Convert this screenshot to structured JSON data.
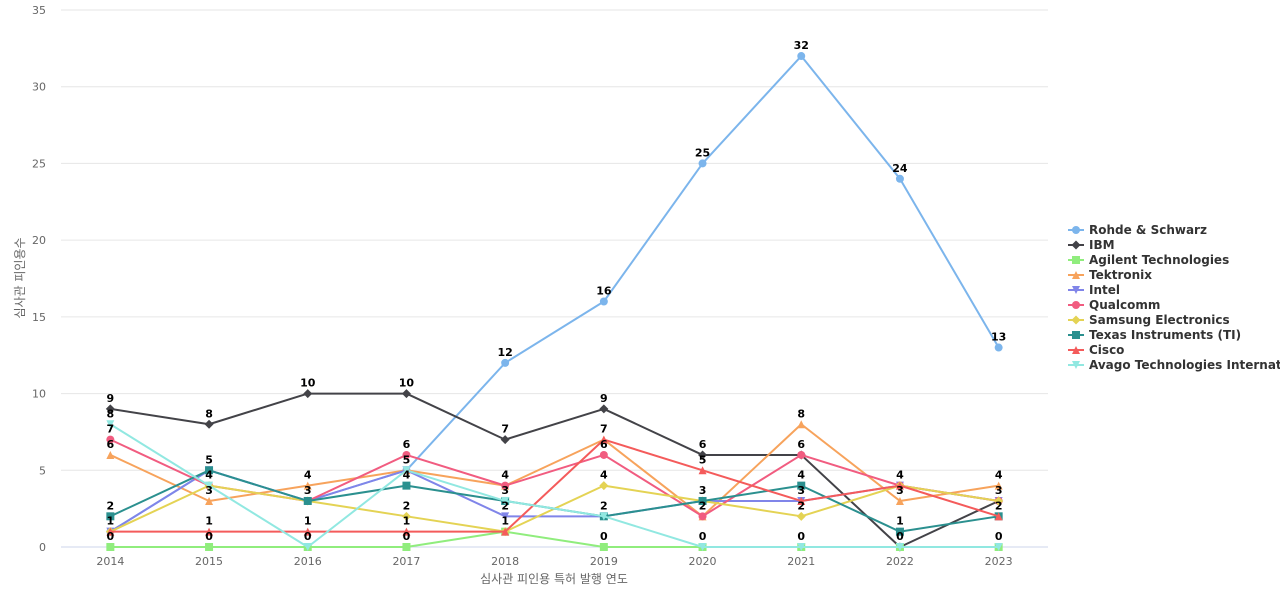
{
  "chart_data": {
    "type": "line",
    "x": [
      "2014",
      "2015",
      "2016",
      "2017",
      "2018",
      "2019",
      "2020",
      "2021",
      "2022",
      "2023"
    ],
    "xlabel": "심사관 피인용 특허 발행 연도",
    "ylabel": "심사관 피인용수",
    "ylim": [
      0,
      35
    ],
    "yticks": [
      0,
      5,
      10,
      15,
      20,
      25,
      30,
      35
    ],
    "grid": true,
    "legend_position": "right",
    "series": [
      {
        "name": "Rohde & Schwarz",
        "marker": "circle",
        "color": "#7cb5ec",
        "values": [
          1,
          5,
          3,
          5,
          12,
          16,
          25,
          32,
          24,
          13
        ]
      },
      {
        "name": "IBM",
        "marker": "diamond",
        "color": "#434348",
        "values": [
          9,
          8,
          10,
          10,
          7,
          9,
          6,
          6,
          0,
          3
        ]
      },
      {
        "name": "Agilent Technologies",
        "marker": "square",
        "color": "#90ed7d",
        "values": [
          0,
          0,
          0,
          0,
          1,
          0,
          0,
          0,
          0,
          0
        ]
      },
      {
        "name": "Tektronix",
        "marker": "triangle",
        "color": "#f7a35c",
        "values": [
          6,
          3,
          4,
          5,
          4,
          7,
          2,
          8,
          3,
          4
        ]
      },
      {
        "name": "Intel",
        "marker": "triangle-down",
        "color": "#8085e9",
        "values": [
          1,
          5,
          3,
          5,
          2,
          2,
          3,
          3,
          4,
          3
        ]
      },
      {
        "name": "Qualcomm",
        "marker": "circle",
        "color": "#f15c80",
        "values": [
          7,
          4,
          3,
          6,
          4,
          6,
          2,
          6,
          4,
          3
        ]
      },
      {
        "name": "Samsung Electronics",
        "marker": "diamond",
        "color": "#e4d354",
        "values": [
          1,
          4,
          3,
          2,
          1,
          4,
          3,
          2,
          4,
          3
        ]
      },
      {
        "name": "Texas Instruments (TI)",
        "marker": "square",
        "color": "#2b908f",
        "values": [
          2,
          5,
          3,
          4,
          3,
          2,
          3,
          4,
          1,
          2
        ]
      },
      {
        "name": "Cisco",
        "marker": "triangle",
        "color": "#f45b5b",
        "values": [
          1,
          1,
          1,
          1,
          1,
          7,
          5,
          3,
          4,
          2
        ]
      },
      {
        "name": "Avago Technologies Internat...",
        "marker": "triangle-down",
        "color": "#91e8e1",
        "values": [
          8,
          4,
          0,
          5,
          3,
          2,
          0,
          0,
          0,
          0
        ]
      }
    ]
  }
}
